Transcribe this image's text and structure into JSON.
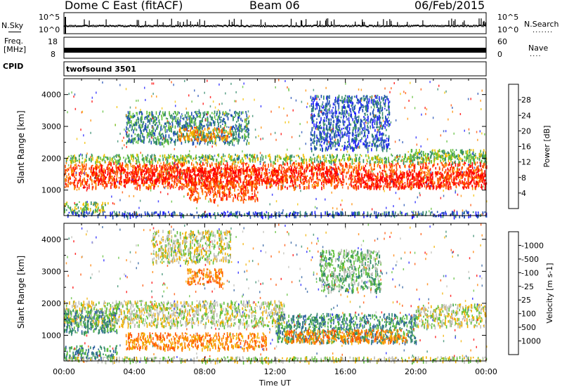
{
  "header": {
    "station": "Dome C East (fitACF)",
    "beam": "Beam 06",
    "date": "06/Feb/2015"
  },
  "strip_panels": {
    "nsky": {
      "label": "N.Sky",
      "top_tick": "10^5",
      "bottom_tick": "10^0"
    },
    "nsearch": {
      "label": "N.Search",
      "dots": "......."
    },
    "freq": {
      "label_line1": "Freq.",
      "label_line2": "[MHz]",
      "top_tick": "18",
      "bottom_tick": "8"
    },
    "nave": {
      "label": "Nave",
      "dots": "....",
      "top_tick": "60",
      "bottom_tick": "0"
    },
    "cpid": {
      "label": "CPID",
      "program": "twofsound 3501"
    }
  },
  "chart_data": [
    {
      "type": "heatmap",
      "name": "power",
      "ylabel": "Slant Range [km]",
      "xlabel": "",
      "ylim": [
        200,
        4500
      ],
      "xlim": [
        0,
        24
      ],
      "yticks": [
        1000,
        2000,
        3000,
        4000
      ],
      "colorbar": {
        "label": "Power [dB]",
        "tick_labels": [
          "4",
          "8",
          "12",
          "16",
          "20",
          "24",
          "28"
        ],
        "colors": [
          "#1f1fff",
          "#2250b5",
          "#338a6a",
          "#5fbf3a",
          "#f2c000",
          "#ff8c00",
          "#ff5000",
          "#ff0000"
        ]
      },
      "bands": [
        {
          "x": [
            0.0,
            24.0
          ],
          "y": [
            1100,
            1900
          ],
          "level": 6
        },
        {
          "x": [
            1.5,
            15.5
          ],
          "y": [
            1250,
            1750
          ],
          "level": 7
        },
        {
          "x": [
            7.0,
            11.0
          ],
          "y": [
            700,
            1300
          ],
          "level": 6
        },
        {
          "x": [
            0.0,
            2.5
          ],
          "y": [
            350,
            650
          ],
          "level": 3
        },
        {
          "x": [
            0.0,
            24.0
          ],
          "y": [
            1900,
            2150
          ],
          "level": 3
        },
        {
          "x": [
            16.5,
            24.0
          ],
          "y": [
            1100,
            1600
          ],
          "level": 7
        },
        {
          "x": [
            3.5,
            10.5
          ],
          "y": [
            2500,
            3500
          ],
          "level": 2
        },
        {
          "x": [
            6.5,
            9.5
          ],
          "y": [
            2600,
            3000
          ],
          "level": 5
        },
        {
          "x": [
            14.0,
            18.5
          ],
          "y": [
            2300,
            4000
          ],
          "level": 1
        },
        {
          "x": [
            19.5,
            24.0
          ],
          "y": [
            2000,
            2300
          ],
          "level": 3
        },
        {
          "x": [
            0.0,
            24.0
          ],
          "y": [
            200,
            350
          ],
          "level": 1
        }
      ]
    },
    {
      "type": "heatmap",
      "name": "velocity",
      "ylabel": "Slant Range [km]",
      "xlabel": "Time UT",
      "ylim": [
        200,
        4500
      ],
      "xlim": [
        0,
        24
      ],
      "yticks": [
        1000,
        2000,
        3000,
        4000
      ],
      "xtick_labels": [
        "00:00",
        "04:00",
        "08:00",
        "12:00",
        "16:00",
        "20:00",
        "00:00"
      ],
      "colorbar": {
        "label": "Velocity [m s-1]",
        "tick_labels": [
          "1000",
          "500",
          "100",
          "25",
          "-25",
          "-100",
          "-500",
          "-1000"
        ],
        "colors": [
          "#1f1fff",
          "#2d5fa0",
          "#338a6a",
          "#5fbf3a",
          "#bfbfb8",
          "#f2b000",
          "#ff8000",
          "#ff5000",
          "#ff0000"
        ]
      },
      "bands": [
        {
          "x": [
            0.0,
            12.5
          ],
          "y": [
            1300,
            2100
          ],
          "level": 4
        },
        {
          "x": [
            0.0,
            3.0
          ],
          "y": [
            1100,
            1800
          ],
          "level": 2
        },
        {
          "x": [
            12.0,
            20.0
          ],
          "y": [
            800,
            1700
          ],
          "level": 2
        },
        {
          "x": [
            20.0,
            24.0
          ],
          "y": [
            1300,
            2000
          ],
          "level": 4
        },
        {
          "x": [
            3.5,
            11.5
          ],
          "y": [
            600,
            1100
          ],
          "level": 6
        },
        {
          "x": [
            12.5,
            19.5
          ],
          "y": [
            800,
            1200
          ],
          "level": 6
        },
        {
          "x": [
            0.0,
            3.0
          ],
          "y": [
            300,
            700
          ],
          "level": 2
        },
        {
          "x": [
            5.0,
            9.5
          ],
          "y": [
            3300,
            4300
          ],
          "level": 4
        },
        {
          "x": [
            7.0,
            9.0
          ],
          "y": [
            2600,
            3100
          ],
          "level": 6
        },
        {
          "x": [
            14.5,
            18.0
          ],
          "y": [
            2400,
            3700
          ],
          "level": 3
        },
        {
          "x": [
            0.0,
            24.0
          ],
          "y": [
            200,
            350
          ],
          "level": 4
        }
      ]
    }
  ]
}
